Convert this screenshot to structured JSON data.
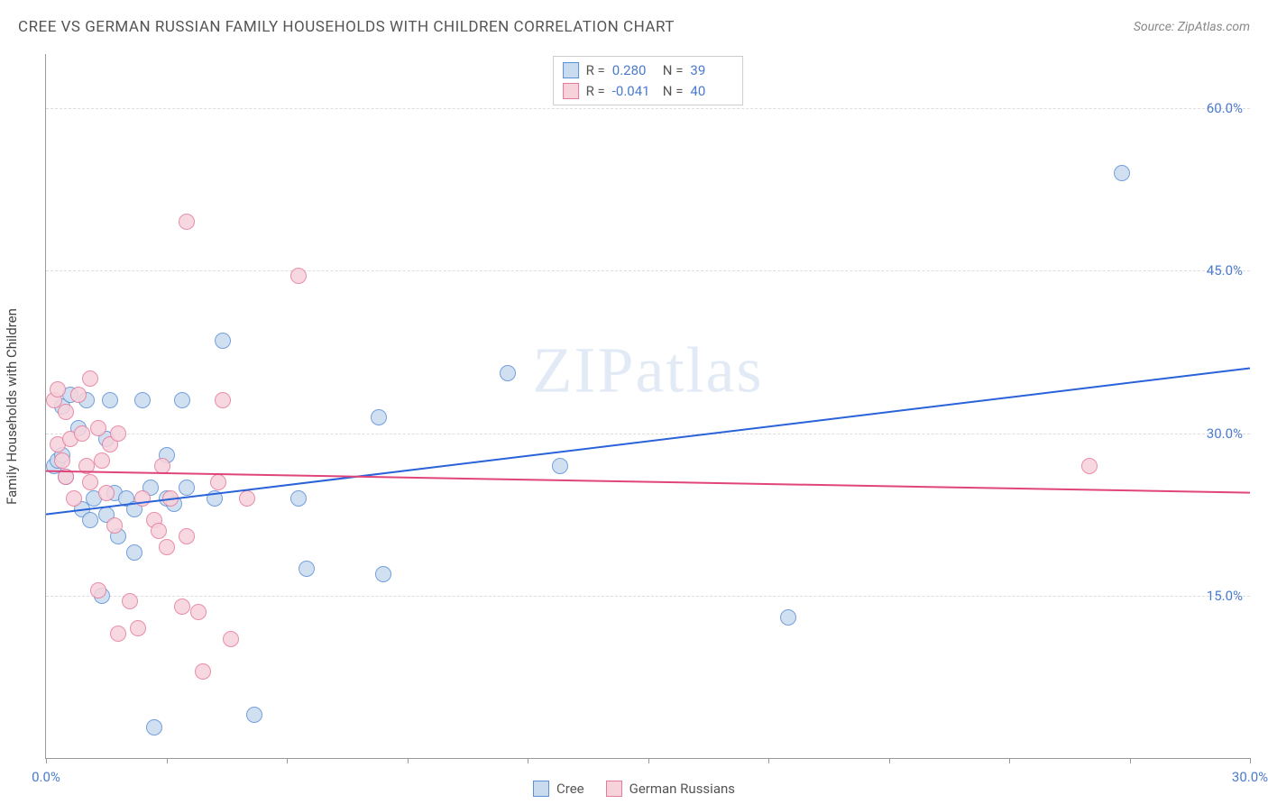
{
  "header": {
    "title": "CREE VS GERMAN RUSSIAN FAMILY HOUSEHOLDS WITH CHILDREN CORRELATION CHART",
    "source_label": "Source: ",
    "source_value": "ZipAtlas.com"
  },
  "chart": {
    "type": "scatter",
    "y_axis_label": "Family Households with Children",
    "xlim": [
      0,
      30
    ],
    "ylim": [
      0,
      65
    ],
    "x_ticks": [
      0,
      3,
      6,
      9,
      12,
      15,
      18,
      21,
      24,
      27,
      30
    ],
    "x_tick_labels": {
      "0": "0.0%",
      "30": "30.0%"
    },
    "y_gridlines": [
      15,
      30,
      45,
      60
    ],
    "y_tick_labels": {
      "15": "15.0%",
      "30": "30.0%",
      "45": "45.0%",
      "60": "60.0%"
    },
    "grid_color": "#dddddd",
    "axis_color": "#999999",
    "point_radius": 9,
    "watermark_text": "ZIPatlas",
    "series": [
      {
        "name": "Cree",
        "fill_color": "#c9dbef",
        "stroke_color": "#5b8fd6",
        "trend_color": "#2962d9",
        "trend_width": 2,
        "R_label": "R =",
        "R_value": "0.280",
        "N_label": "N =",
        "N_value": "39",
        "trend": {
          "x1": 0,
          "y1": 22.5,
          "x2": 30,
          "y2": 36.0
        },
        "points": [
          [
            0.2,
            27.0
          ],
          [
            0.3,
            27.5
          ],
          [
            0.4,
            28.0
          ],
          [
            0.4,
            32.5
          ],
          [
            0.5,
            26.0
          ],
          [
            0.6,
            33.5
          ],
          [
            0.8,
            30.5
          ],
          [
            0.9,
            23.0
          ],
          [
            1.0,
            33.0
          ],
          [
            1.1,
            22.0
          ],
          [
            1.2,
            24.0
          ],
          [
            1.4,
            15.0
          ],
          [
            1.5,
            29.5
          ],
          [
            1.5,
            22.5
          ],
          [
            1.6,
            33.0
          ],
          [
            1.7,
            24.5
          ],
          [
            1.8,
            20.5
          ],
          [
            2.0,
            24.0
          ],
          [
            2.2,
            23.0
          ],
          [
            2.2,
            19.0
          ],
          [
            2.4,
            33.0
          ],
          [
            2.6,
            25.0
          ],
          [
            3.0,
            24.0
          ],
          [
            3.0,
            28.0
          ],
          [
            3.2,
            23.5
          ],
          [
            3.4,
            33.0
          ],
          [
            3.5,
            25.0
          ],
          [
            4.2,
            24.0
          ],
          [
            4.4,
            38.5
          ],
          [
            5.2,
            4.0
          ],
          [
            2.7,
            2.8
          ],
          [
            6.3,
            24.0
          ],
          [
            6.5,
            17.5
          ],
          [
            8.3,
            31.5
          ],
          [
            8.4,
            17.0
          ],
          [
            11.5,
            35.5
          ],
          [
            12.8,
            27.0
          ],
          [
            18.5,
            13.0
          ],
          [
            26.8,
            54.0
          ]
        ]
      },
      {
        "name": "German Russians",
        "fill_color": "#f6d2db",
        "stroke_color": "#e67a9b",
        "trend_color": "#e0457a",
        "trend_width": 2,
        "R_label": "R =",
        "R_value": "-0.041",
        "N_label": "N =",
        "N_value": "40",
        "trend": {
          "x1": 0,
          "y1": 26.5,
          "x2": 30,
          "y2": 24.5
        },
        "points": [
          [
            0.2,
            33.0
          ],
          [
            0.3,
            34.0
          ],
          [
            0.3,
            29.0
          ],
          [
            0.4,
            27.5
          ],
          [
            0.5,
            32.0
          ],
          [
            0.5,
            26.0
          ],
          [
            0.6,
            29.5
          ],
          [
            0.7,
            24.0
          ],
          [
            0.8,
            33.5
          ],
          [
            0.9,
            30.0
          ],
          [
            1.0,
            27.0
          ],
          [
            1.1,
            25.5
          ],
          [
            1.1,
            35.0
          ],
          [
            1.3,
            30.5
          ],
          [
            1.3,
            15.5
          ],
          [
            1.4,
            27.5
          ],
          [
            1.5,
            24.5
          ],
          [
            1.6,
            29.0
          ],
          [
            1.7,
            21.5
          ],
          [
            1.8,
            30.0
          ],
          [
            1.8,
            11.5
          ],
          [
            2.1,
            14.5
          ],
          [
            2.3,
            12.0
          ],
          [
            2.4,
            24.0
          ],
          [
            2.7,
            22.0
          ],
          [
            2.8,
            21.0
          ],
          [
            2.9,
            27.0
          ],
          [
            3.0,
            19.5
          ],
          [
            3.1,
            24.0
          ],
          [
            3.4,
            14.0
          ],
          [
            3.5,
            49.5
          ],
          [
            3.5,
            20.5
          ],
          [
            3.8,
            13.5
          ],
          [
            3.9,
            8.0
          ],
          [
            4.3,
            25.5
          ],
          [
            4.4,
            33.0
          ],
          [
            4.6,
            11.0
          ],
          [
            5.0,
            24.0
          ],
          [
            6.3,
            44.5
          ],
          [
            26.0,
            27.0
          ]
        ]
      }
    ],
    "legend": {
      "items": [
        {
          "label": "Cree",
          "fill": "#c9dbef",
          "stroke": "#5b8fd6"
        },
        {
          "label": "German Russians",
          "fill": "#f6d2db",
          "stroke": "#e67a9b"
        }
      ]
    }
  }
}
